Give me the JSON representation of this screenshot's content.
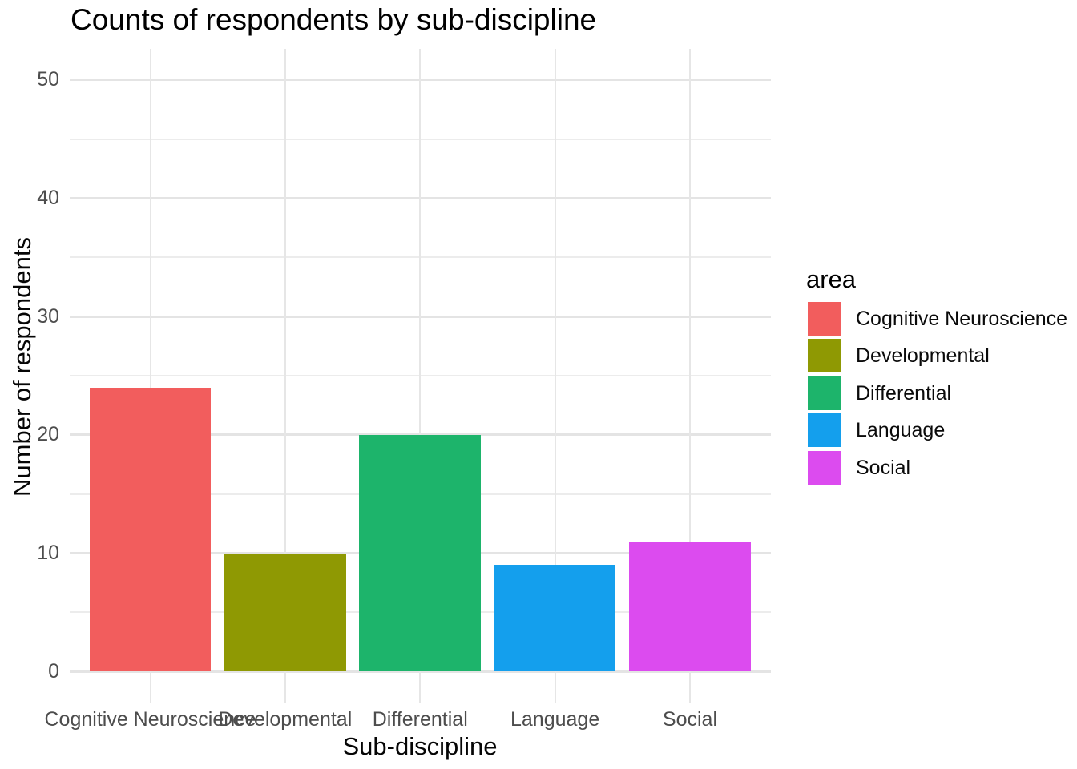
{
  "title": "Counts of respondents by sub-discipline",
  "x_axis": {
    "label": "Sub-discipline",
    "tick_labels": [
      "Cognitive Neuroscience",
      "Developmental",
      "Differential",
      "Language",
      "Social"
    ]
  },
  "y_axis": {
    "label": "Number of respondents",
    "tick_labels": [
      "0",
      "10",
      "20",
      "30",
      "40",
      "50"
    ]
  },
  "legend": {
    "title": "area",
    "items": [
      {
        "label": "Cognitive Neuroscience",
        "color": "#F25D5D"
      },
      {
        "label": "Developmental",
        "color": "#8F9903"
      },
      {
        "label": "Differential",
        "color": "#1DB46B"
      },
      {
        "label": "Language",
        "color": "#149FED"
      },
      {
        "label": "Social",
        "color": "#DC4BEF"
      }
    ]
  },
  "chart_data": {
    "type": "bar",
    "title": "Counts of respondents by sub-discipline",
    "xlabel": "Sub-discipline",
    "ylabel": "Number of respondents",
    "categories": [
      "Cognitive Neuroscience",
      "Developmental",
      "Differential",
      "Language",
      "Social"
    ],
    "values": [
      24,
      10,
      20,
      9,
      11
    ],
    "bar_colors": [
      "#F25D5D",
      "#8F9903",
      "#1DB46B",
      "#149FED",
      "#DC4BEF"
    ],
    "ylim": [
      0,
      52.6
    ],
    "yticks": [
      0,
      10,
      20,
      30,
      40,
      50
    ],
    "minor_ticks": [
      5,
      15,
      25,
      35,
      45
    ],
    "grid": "major+minor horizontal, major vertical at category centers",
    "grid_color": "#E6E6E6",
    "legend_title": "area",
    "legend_position": "right",
    "bar_relative_width": 0.9
  }
}
